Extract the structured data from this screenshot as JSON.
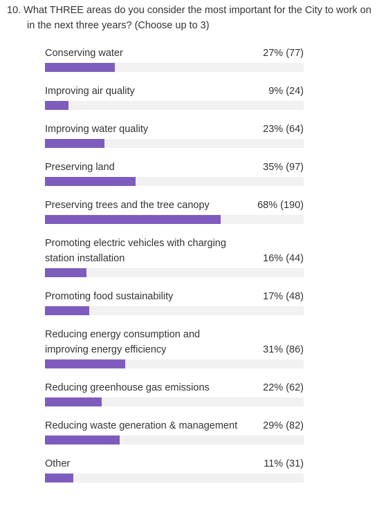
{
  "chart_data": {
    "type": "bar",
    "orientation": "horizontal",
    "title": "10. What THREE areas do you consider the most important for the City to work on in the next three years? (Choose up to 3)",
    "categories": [
      "Conserving water",
      "Improving air quality",
      "Improving water quality",
      "Preserving land",
      "Preserving trees and the tree canopy",
      "Promoting electric vehicles with charging station installation",
      "Promoting food sustainability",
      "Reducing energy consumption and improving energy efficiency",
      "Reducing greenhouse gas emissions",
      "Reducing waste generation & management",
      "Other"
    ],
    "values": [
      27,
      9,
      23,
      35,
      68,
      16,
      17,
      31,
      22,
      29,
      11
    ],
    "value_labels": [
      "27% (77)",
      "9% (24)",
      "23% (64)",
      "35% (97)",
      "68% (190)",
      "16% (44)",
      "17% (48)",
      "31% (86)",
      "22% (62)",
      "29% (82)",
      "11% (31)"
    ],
    "color": "#7e5cbd",
    "xlim": [
      0,
      100
    ]
  }
}
